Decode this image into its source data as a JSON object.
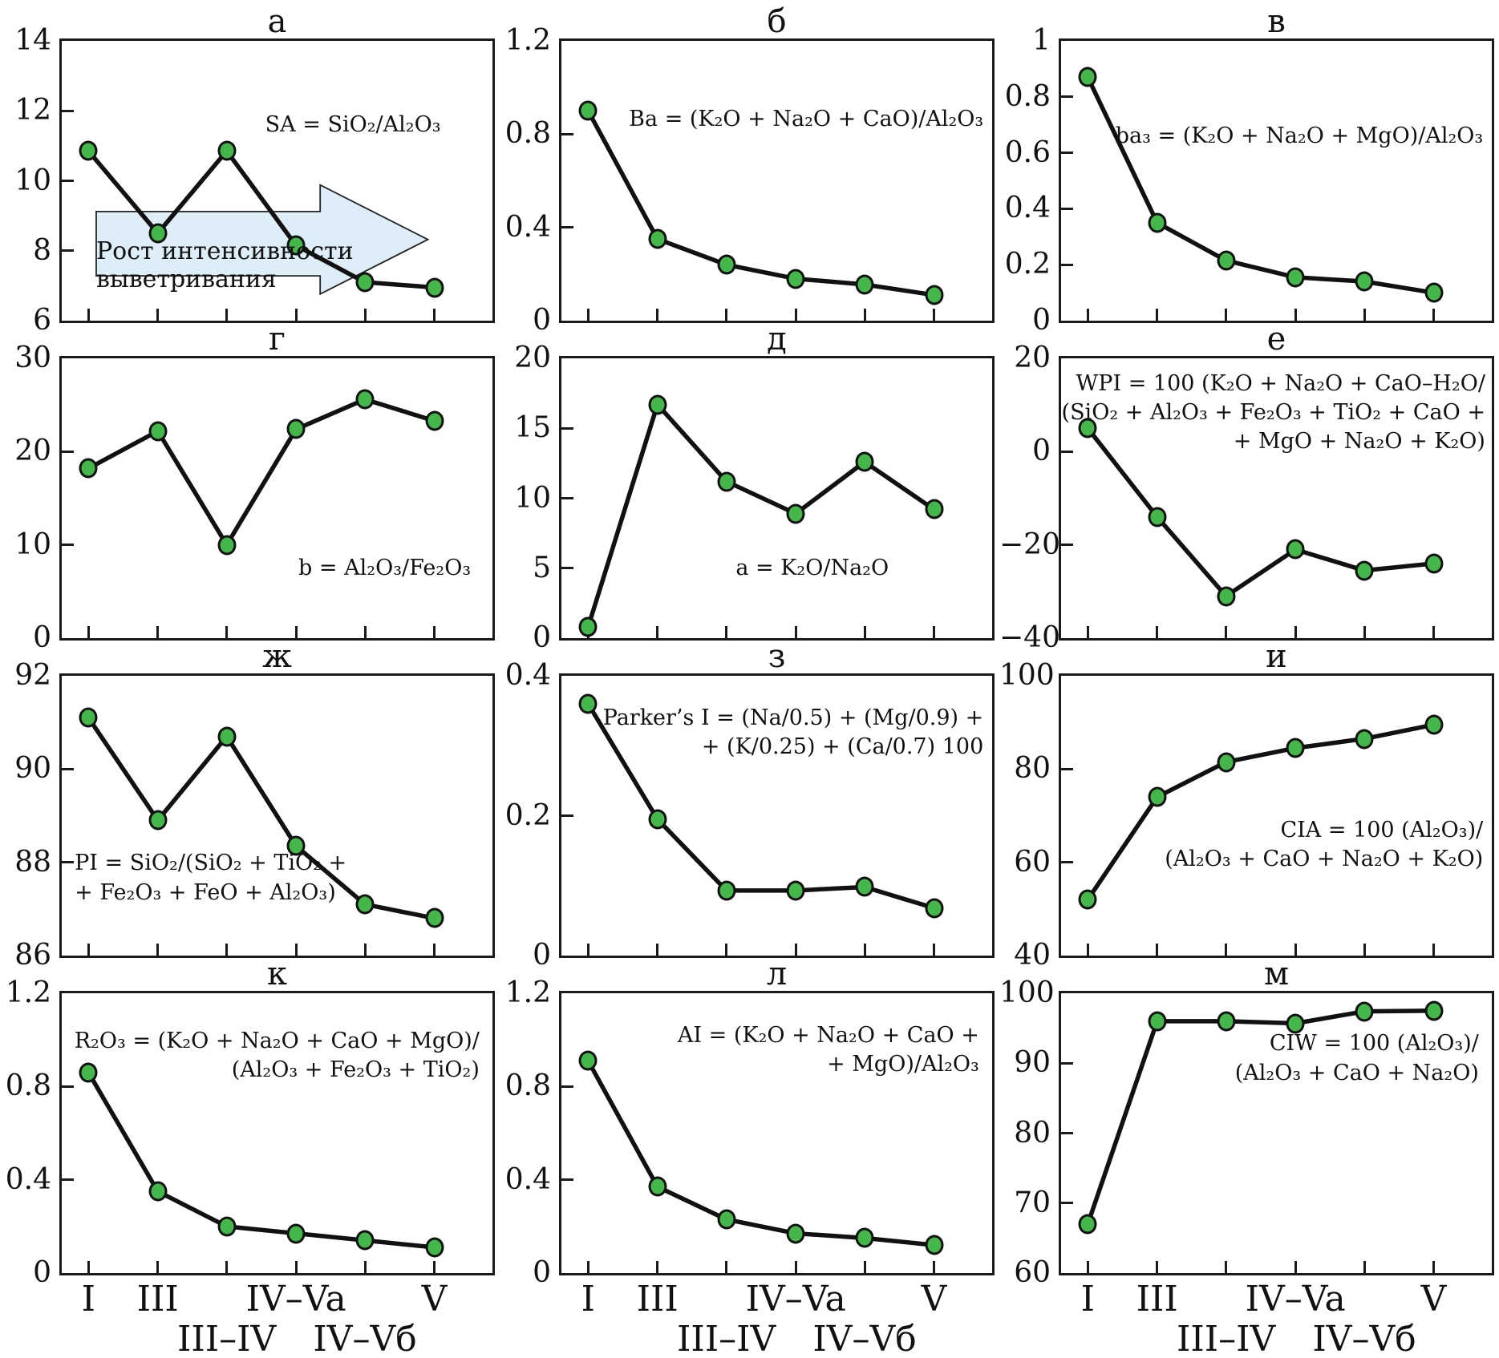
{
  "figure": {
    "background": "#ffffff",
    "line_color": "#111111",
    "marker_fill": "#45b649",
    "marker_stroke": "#111111",
    "arrow_fill": "#ddeef8",
    "arrow_stroke": "#222222",
    "x_axis": {
      "tick_fractions": [
        6.2,
        22.3,
        38.3,
        54.4,
        70.4,
        86.5
      ],
      "labels": [
        {
          "text": "I",
          "row": 0,
          "frac": 6.2
        },
        {
          "text": "III",
          "row": 0,
          "frac": 22.3
        },
        {
          "text": "III–IV",
          "row": 1,
          "frac": 38.3
        },
        {
          "text": "IV–Va",
          "row": 0,
          "frac": 54.4
        },
        {
          "text": "IV–Vб",
          "row": 1,
          "frac": 70.4
        },
        {
          "text": "V",
          "row": 0,
          "frac": 86.5
        }
      ]
    }
  },
  "chart_data": [
    {
      "id": "a",
      "type": "line",
      "title": "а",
      "categories": [
        "I",
        "III",
        "III–IV",
        "IV–Va",
        "IV–Vб",
        "V"
      ],
      "ylim": [
        6,
        14
      ],
      "yticks": [
        14,
        12,
        10,
        8,
        6
      ],
      "values": [
        10.85,
        8.5,
        10.85,
        8.15,
        7.1,
        6.95
      ],
      "formula": {
        "lines": [
          "SA = SiO₂/Al₂O₃"
        ],
        "align": "right",
        "x": 12,
        "y": 25
      },
      "annotation": {
        "lines": [
          "Рост интенсивности",
          "выветривания"
        ],
        "x": 8,
        "y": 70.5
      },
      "arrow_points": [
        [
          8,
          61
        ],
        [
          60,
          61
        ],
        [
          60,
          51.5
        ],
        [
          85,
          71
        ],
        [
          60,
          90.5
        ],
        [
          60,
          84
        ],
        [
          8,
          84
        ]
      ]
    },
    {
      "id": "b",
      "type": "line",
      "title": "б",
      "categories": [
        "I",
        "III",
        "III–IV",
        "IV–Va",
        "IV–Vб",
        "V"
      ],
      "ylim": [
        0,
        1.2
      ],
      "yticks": [
        1.2,
        0.8,
        0.4,
        0
      ],
      "values": [
        0.9,
        0.35,
        0.24,
        0.18,
        0.155,
        0.11
      ],
      "formula": {
        "lines": [
          "Ba = (K₂O + Na₂O + CaO)/Al₂O₃"
        ],
        "align": "right",
        "x": 2,
        "y": 23
      }
    },
    {
      "id": "v",
      "type": "line",
      "title": "в",
      "categories": [
        "I",
        "III",
        "III–IV",
        "IV–Va",
        "IV–Vб",
        "V"
      ],
      "ylim": [
        0,
        1.0
      ],
      "yticks": [
        1.0,
        0.8,
        0.6,
        0.4,
        0.2,
        0
      ],
      "values": [
        0.87,
        0.35,
        0.215,
        0.155,
        0.14,
        0.1
      ],
      "formula": {
        "lines": [
          "ba₃ = (K₂O + Na₂O + MgO)/Al₂O₃"
        ],
        "align": "right",
        "x": 2,
        "y": 29
      }
    },
    {
      "id": "g",
      "type": "line",
      "title": "г",
      "categories": [
        "I",
        "III",
        "III–IV",
        "IV–Va",
        "IV–Vб",
        "V"
      ],
      "ylim": [
        0,
        30
      ],
      "yticks": [
        30,
        20,
        10,
        0
      ],
      "values": [
        18.2,
        22.2,
        10.0,
        22.4,
        25.6,
        23.3
      ],
      "formula": {
        "lines": [
          "b = Al₂O₃/Fe₂O₃"
        ],
        "align": "right",
        "x": 5,
        "y": 70
      }
    },
    {
      "id": "d",
      "type": "line",
      "title": "д",
      "categories": [
        "I",
        "III",
        "III–IV",
        "IV–Va",
        "IV–Vб",
        "V"
      ],
      "ylim": [
        0,
        20
      ],
      "yticks": [
        20,
        15,
        10,
        5,
        0
      ],
      "values": [
        0.8,
        16.7,
        11.2,
        8.9,
        12.6,
        9.2
      ],
      "formula": {
        "lines": [
          "a = K₂O/Na₂O"
        ],
        "align": "right",
        "x": 24,
        "y": 70
      }
    },
    {
      "id": "e",
      "type": "line",
      "title": "е",
      "categories": [
        "I",
        "III",
        "III–IV",
        "IV–Va",
        "IV–Vб",
        "V"
      ],
      "ylim": [
        -40,
        20
      ],
      "yticks": [
        20,
        0,
        -20,
        -40
      ],
      "values": [
        5,
        -14,
        -31,
        -21,
        -25.5,
        -24
      ],
      "formula": {
        "lines": [
          "WPI = 100 (K₂O + Na₂O + CaO–H₂O/",
          "(SiO₂ + Al₂O₃ + Fe₂O₃ + TiO₂ + CaO +",
          "+ MgO + Na₂O + K₂O)"
        ],
        "align": "right",
        "x": 1.5,
        "y": 4
      }
    },
    {
      "id": "zh",
      "type": "line",
      "title": "ж",
      "categories": [
        "I",
        "III",
        "III–IV",
        "IV–Va",
        "IV–Vб",
        "V"
      ],
      "ylim": [
        86,
        92
      ],
      "yticks": [
        92,
        90,
        88,
        86
      ],
      "values": [
        91.1,
        88.9,
        90.7,
        88.35,
        87.1,
        86.8
      ],
      "formula": {
        "lines": [
          "PI = SiO₂/(SiO₂ + TiO₂ +",
          "+ Fe₂O₃ + FeO + Al₂O₃)"
        ],
        "align": "left",
        "x": 3,
        "y": 62
      }
    },
    {
      "id": "z",
      "type": "line",
      "title": "з",
      "categories": [
        "I",
        "III",
        "III–IV",
        "IV–Va",
        "IV–Vб",
        "V"
      ],
      "ylim": [
        0,
        0.4
      ],
      "yticks": [
        0.4,
        0.2,
        0
      ],
      "values": [
        0.36,
        0.195,
        0.093,
        0.093,
        0.098,
        0.068
      ],
      "formula": {
        "lines": [
          "Parker’s I = (Na/0.5) + (Mg/0.9) +",
          "+ (K/0.25) + (Ca/0.7) 100"
        ],
        "align": "right",
        "x": 2,
        "y": 10
      }
    },
    {
      "id": "i",
      "type": "line",
      "title": "и",
      "categories": [
        "I",
        "III",
        "III–IV",
        "IV–Va",
        "IV–Vб",
        "V"
      ],
      "ylim": [
        40,
        100
      ],
      "yticks": [
        100,
        80,
        60,
        40
      ],
      "values": [
        52,
        74,
        81.5,
        84.5,
        86.5,
        89.5
      ],
      "formula": {
        "lines": [
          "CIA =  100 (Al₂O₃)/",
          "(Al₂O₃ + CaO + Na₂O + K₂O)"
        ],
        "align": "right",
        "x": 2,
        "y": 50
      }
    },
    {
      "id": "k",
      "type": "line",
      "title": "к",
      "categories": [
        "I",
        "III",
        "III–IV",
        "IV–Va",
        "IV–Vб",
        "V"
      ],
      "ylim": [
        0,
        1.2
      ],
      "yticks": [
        1.2,
        0.8,
        0.4,
        0
      ],
      "values": [
        0.86,
        0.35,
        0.2,
        0.17,
        0.14,
        0.11
      ],
      "formula": {
        "lines": [
          "R₂O₃ =  (K₂O + Na₂O + CaO + MgO)/",
          "(Al₂O₃ + Fe₂O₃ + TiO₂)"
        ],
        "align": "right",
        "x": 3,
        "y": 12
      }
    },
    {
      "id": "l",
      "type": "line",
      "title": "л",
      "categories": [
        "I",
        "III",
        "III–IV",
        "IV–Va",
        "IV–Vб",
        "V"
      ],
      "ylim": [
        0,
        1.2
      ],
      "yticks": [
        1.2,
        0.8,
        0.4,
        0
      ],
      "values": [
        0.91,
        0.37,
        0.23,
        0.17,
        0.15,
        0.12
      ],
      "formula": {
        "lines": [
          "AI =  (K₂O + Na₂O + CaO +",
          "+ MgO)/Al₂O₃"
        ],
        "align": "right",
        "x": 3,
        "y": 10
      }
    },
    {
      "id": "m",
      "type": "line",
      "title": "м",
      "categories": [
        "I",
        "III",
        "III–IV",
        "IV–Va",
        "IV–Vб",
        "V"
      ],
      "ylim": [
        60,
        100
      ],
      "yticks": [
        100,
        90,
        80,
        70,
        60
      ],
      "values": [
        67,
        96,
        96,
        95.7,
        97.4,
        97.5
      ],
      "formula": {
        "lines": [
          "CIW =  100 (Al₂O₃)/",
          "(Al₂O₃ + CaO + Na₂O)"
        ],
        "align": "right",
        "x": 3,
        "y": 13
      }
    }
  ]
}
